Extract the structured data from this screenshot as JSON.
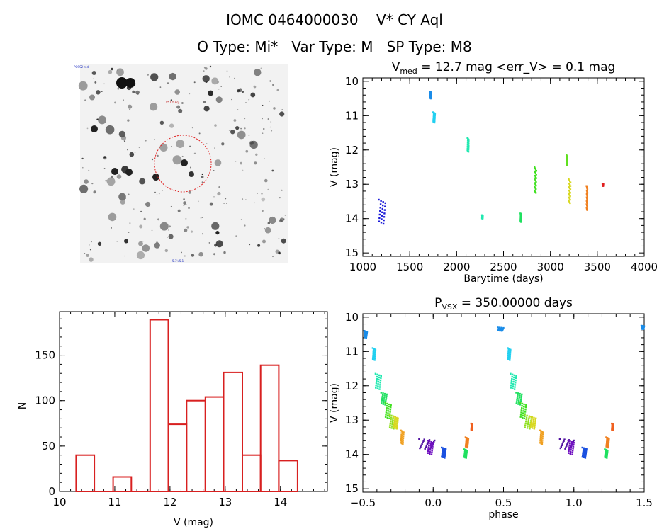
{
  "header": {
    "line1": "IOMC 0464000030    V* CY Aql",
    "line2": "O Type: Mi*   Var Type: M   SP Type: M8"
  },
  "sky_image": {
    "marker_label": "V* CY Aql",
    "corner_label_left": "POSS2 red",
    "corner_label_bottom": "5.1'x5.1'"
  },
  "chart_data": [
    {
      "id": "lightcurve",
      "type": "scatter",
      "title_main": "V",
      "title_sub": "med",
      "title_rest": " = 12.7 mag <err_V> = 0.1 mag",
      "xlabel": "Barytime (days)",
      "ylabel": "V (mag)",
      "xlim": [
        1000,
        4000
      ],
      "ylim": [
        15.1,
        9.9
      ],
      "xticks": [
        1000,
        1500,
        2000,
        2500,
        3000,
        3500,
        4000
      ],
      "yticks": [
        10,
        11,
        12,
        13,
        14,
        15
      ],
      "groups": [
        {
          "x": [
            1170,
            1240
          ],
          "y": [
            13.45,
            14.15
          ],
          "color": "#1a1ad8"
        },
        {
          "x": [
            1715,
            1730
          ],
          "y": [
            10.3,
            10.5
          ],
          "color": "#1a8ce8"
        },
        {
          "x": [
            1750,
            1770
          ],
          "y": [
            10.9,
            11.2
          ],
          "color": "#22d0f0"
        },
        {
          "x": [
            2115,
            2130
          ],
          "y": [
            11.65,
            12.05
          ],
          "color": "#20e8b0"
        },
        {
          "x": [
            2270,
            2280
          ],
          "y": [
            13.9,
            14.0
          ],
          "color": "#20e8b0"
        },
        {
          "x": [
            2680,
            2690
          ],
          "y": [
            13.85,
            14.1
          ],
          "color": "#20e060"
        },
        {
          "x": [
            2830,
            2850
          ],
          "y": [
            12.5,
            13.25
          ],
          "color": "#40e020"
        },
        {
          "x": [
            3170,
            3180
          ],
          "y": [
            12.15,
            12.45
          ],
          "color": "#60e020"
        },
        {
          "x": [
            3195,
            3215
          ],
          "y": [
            12.85,
            13.55
          ],
          "color": "#d8d820"
        },
        {
          "x": [
            3385,
            3395
          ],
          "y": [
            13.05,
            13.75
          ],
          "color": "#f08020"
        },
        {
          "x": [
            3555,
            3565
          ],
          "y": [
            12.98,
            13.05
          ],
          "color": "#e02020"
        }
      ]
    },
    {
      "id": "histogram",
      "type": "bar",
      "xlabel": "V (mag)",
      "ylabel": "N",
      "xlim": [
        10,
        14.85
      ],
      "ylim": [
        0,
        198
      ],
      "xticks": [
        10,
        11,
        12,
        13,
        14
      ],
      "yticks": [
        0,
        50,
        100,
        150
      ],
      "bin_edges": [
        10.3,
        10.63,
        10.97,
        11.3,
        11.64,
        11.97,
        12.3,
        12.64,
        12.97,
        13.31,
        13.64,
        13.97,
        14.31
      ],
      "counts": [
        40,
        0,
        16,
        0,
        189,
        74,
        100,
        104,
        131,
        40,
        139,
        34
      ],
      "bar_color": "#d82020"
    },
    {
      "id": "phased",
      "type": "scatter",
      "title_main": "P",
      "title_sub": "VSX",
      "title_rest": " = 350.00000 days",
      "xlabel": "phase",
      "ylabel": "V (mag)",
      "xlim": [
        -0.5,
        1.5
      ],
      "ylim": [
        15.1,
        9.9
      ],
      "xticks": [
        -0.5,
        0.0,
        0.5,
        1.0,
        1.5
      ],
      "ytick_labels_x": [
        "−0.5",
        "0.0",
        "0.5",
        "1.0",
        "1.5"
      ],
      "yticks": [
        10,
        11,
        12,
        13,
        14,
        15
      ],
      "groups": [
        {
          "x": [
            -0.49,
            -0.47
          ],
          "y": [
            10.4,
            10.6
          ],
          "color": "#1a8ce8"
        },
        {
          "x": [
            -0.43,
            -0.41
          ],
          "y": [
            10.9,
            11.25
          ],
          "color": "#22d0f0"
        },
        {
          "x": [
            -0.41,
            -0.37
          ],
          "y": [
            11.65,
            12.1
          ],
          "color": "#20e8b0"
        },
        {
          "x": [
            -0.37,
            -0.33
          ],
          "y": [
            12.2,
            12.55
          ],
          "color": "#20e060"
        },
        {
          "x": [
            -0.34,
            -0.3
          ],
          "y": [
            12.5,
            12.95
          ],
          "color": "#40e020"
        },
        {
          "x": [
            -0.31,
            -0.27
          ],
          "y": [
            12.85,
            13.25
          ],
          "color": "#90e020"
        },
        {
          "x": [
            -0.28,
            -0.25
          ],
          "y": [
            12.9,
            13.25
          ],
          "color": "#d8d820"
        },
        {
          "x": [
            -0.23,
            -0.21
          ],
          "y": [
            13.3,
            13.7
          ],
          "color": "#f0a020"
        },
        {
          "x": [
            -0.1,
            0.01
          ],
          "y": [
            13.55,
            13.85
          ],
          "color": "#5010a0"
        },
        {
          "x": [
            -0.04,
            0.0
          ],
          "y": [
            13.6,
            14.0
          ],
          "color": "#7010c0"
        },
        {
          "x": [
            0.06,
            0.09
          ],
          "y": [
            13.8,
            14.1
          ],
          "color": "#1a50e0"
        },
        {
          "x": [
            0.22,
            0.24
          ],
          "y": [
            13.85,
            14.1
          ],
          "color": "#20e060"
        },
        {
          "x": [
            0.23,
            0.25
          ],
          "y": [
            13.5,
            13.8
          ],
          "color": "#f08020"
        },
        {
          "x": [
            0.27,
            0.28
          ],
          "y": [
            13.1,
            13.3
          ],
          "color": "#f06020"
        },
        {
          "x": [
            0.46,
            0.5
          ],
          "y": [
            10.3,
            10.4
          ],
          "color": "#1a8ce8"
        },
        {
          "x": [
            0.53,
            0.55
          ],
          "y": [
            10.9,
            11.25
          ],
          "color": "#22d0f0"
        },
        {
          "x": [
            0.55,
            0.59
          ],
          "y": [
            11.65,
            12.1
          ],
          "color": "#20e8b0"
        },
        {
          "x": [
            0.59,
            0.63
          ],
          "y": [
            12.2,
            12.55
          ],
          "color": "#20e060"
        },
        {
          "x": [
            0.62,
            0.66
          ],
          "y": [
            12.5,
            12.95
          ],
          "color": "#40e020"
        },
        {
          "x": [
            0.65,
            0.7
          ],
          "y": [
            12.85,
            13.25
          ],
          "color": "#90e020"
        },
        {
          "x": [
            0.69,
            0.73
          ],
          "y": [
            12.9,
            13.25
          ],
          "color": "#d8d820"
        },
        {
          "x": [
            0.76,
            0.78
          ],
          "y": [
            13.3,
            13.7
          ],
          "color": "#f0a020"
        },
        {
          "x": [
            0.9,
            1.0
          ],
          "y": [
            13.55,
            13.85
          ],
          "color": "#5010a0"
        },
        {
          "x": [
            0.96,
            1.0
          ],
          "y": [
            13.6,
            14.0
          ],
          "color": "#7010c0"
        },
        {
          "x": [
            1.06,
            1.09
          ],
          "y": [
            13.8,
            14.1
          ],
          "color": "#1a50e0"
        },
        {
          "x": [
            1.22,
            1.24
          ],
          "y": [
            13.85,
            14.1
          ],
          "color": "#20e060"
        },
        {
          "x": [
            1.23,
            1.25
          ],
          "y": [
            13.5,
            13.8
          ],
          "color": "#f08020"
        },
        {
          "x": [
            1.27,
            1.28
          ],
          "y": [
            13.1,
            13.3
          ],
          "color": "#f06020"
        },
        {
          "x": [
            1.48,
            1.5
          ],
          "y": [
            10.25,
            10.35
          ],
          "color": "#1a8ce8"
        }
      ]
    }
  ]
}
